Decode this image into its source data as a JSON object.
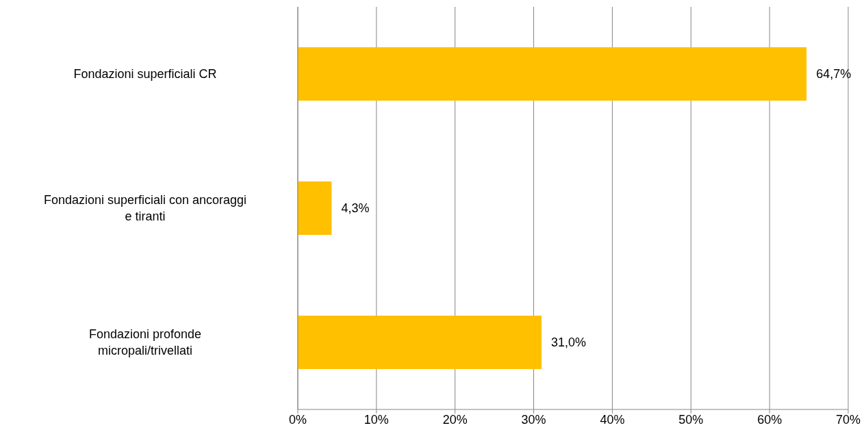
{
  "chart_data": {
    "type": "bar",
    "orientation": "horizontal",
    "categories": [
      "Fondazioni superficiali CR",
      "Fondazioni superficiali con ancoraggi e tiranti",
      "Fondazioni profonde micropali/trivellati"
    ],
    "values": [
      64.7,
      4.3,
      31.0
    ],
    "value_labels": [
      "64,7%",
      "4,3%",
      "31,0%"
    ],
    "color": "#ffc000",
    "xlim": [
      0,
      70
    ],
    "xticks": [
      {
        "value": 0,
        "label": "0%"
      },
      {
        "value": 10,
        "label": "10%"
      },
      {
        "value": 20,
        "label": "20%"
      },
      {
        "value": 30,
        "label": "30%"
      },
      {
        "value": 40,
        "label": "40%"
      },
      {
        "value": 50,
        "label": "50%"
      },
      {
        "value": 60,
        "label": "60%"
      },
      {
        "value": 70,
        "label": "70%"
      }
    ],
    "grid": "x"
  }
}
